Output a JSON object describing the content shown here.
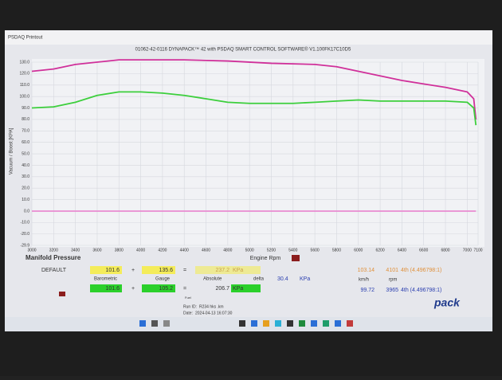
{
  "window_title": "PSDAQ Printout",
  "chart_data": {
    "type": "line",
    "title": "01062-42-0116 DYNAPACK™ 42 with PSDAQ SMART CONTROL SOFTWARE® V1.100FK17C10D5",
    "ylabel": "Vacuum / Boost [KPA]",
    "xlabel": "Engine Rpm",
    "xlim": [
      3000,
      7100
    ],
    "xticks": [
      3000,
      3200,
      3400,
      3600,
      3800,
      4000,
      4200,
      4400,
      4600,
      4800,
      5000,
      5200,
      5400,
      5600,
      5800,
      6000,
      6200,
      6400,
      6600,
      6800,
      7000,
      7100
    ],
    "ylim": [
      -29.9,
      130
    ],
    "yticks": [
      {
        "value": 130,
        "label": "130.0"
      },
      {
        "value": 120,
        "label": "120.0"
      },
      {
        "value": 110,
        "label": "110.0"
      },
      {
        "value": 100,
        "label": "100.0"
      },
      {
        "value": 90,
        "label": "90.0"
      },
      {
        "value": 80,
        "label": "80.0"
      },
      {
        "value": 70,
        "label": "70.0"
      },
      {
        "value": 60,
        "label": "60.0"
      },
      {
        "value": 50,
        "label": "50.0"
      },
      {
        "value": 40,
        "label": "40.0"
      },
      {
        "value": 30,
        "label": "30.0"
      },
      {
        "value": 20,
        "label": "20.0"
      },
      {
        "value": 10,
        "label": "10.0"
      },
      {
        "value": 0,
        "label": "0.0"
      },
      {
        "value": -10,
        "label": "-10.0"
      },
      {
        "value": -20,
        "label": "-20.0"
      },
      -29.9
    ],
    "grid": true,
    "series": [
      {
        "color": "#d0309a",
        "x": [
          3000,
          3200,
          3400,
          3600,
          3800,
          4000,
          4400,
          4800,
          5200,
          5600,
          5800,
          6000,
          6200,
          6400,
          6600,
          6800,
          7000,
          7060,
          7080
        ],
        "values": [
          122,
          124,
          128,
          130,
          132,
          132,
          132,
          131,
          129,
          128,
          126,
          122,
          118,
          114,
          111,
          108,
          104,
          98,
          80
        ]
      },
      {
        "color": "#3ccf3c",
        "x": [
          3000,
          3200,
          3400,
          3600,
          3800,
          4000,
          4200,
          4400,
          4600,
          4800,
          5000,
          5200,
          5400,
          5600,
          5800,
          6000,
          6200,
          6400,
          6600,
          6800,
          7000,
          7060,
          7080
        ],
        "values": [
          90,
          91,
          95,
          101,
          104,
          104,
          103,
          101,
          98,
          95,
          94,
          94,
          94,
          95,
          96,
          97,
          96,
          96,
          96,
          96,
          95,
          90,
          75
        ]
      },
      {
        "color": "#e88ad0",
        "x": [
          3000,
          7080
        ],
        "values": [
          0,
          0
        ]
      }
    ]
  },
  "panel": {
    "title": "Manifold Pressure",
    "row_label": "DEFAULT",
    "plus": "+",
    "equals": "=",
    "labels": {
      "baro": "Barometric",
      "gauge": "Gauge",
      "abs": "Absolute",
      "delta": "delta",
      "kmh": "km/h",
      "rpm": "rpm",
      "fuel": "Fuel"
    },
    "row1": {
      "baro": "101.6",
      "gauge": "135.6",
      "abs": "237.2",
      "unit": "KPa",
      "speed": "103.14",
      "rpm": "4101",
      "gear": "4th (4.496798:1)"
    },
    "delta": {
      "value": "30.4",
      "unit": "KPa"
    },
    "row2": {
      "baro": "101.6",
      "gauge": "105.2",
      "abs": "206.7",
      "unit": "KPa",
      "speed": "99.72",
      "rpm": "3965",
      "gear": "4th (4.496798:1)"
    },
    "run_id_label": "Run ID:",
    "run_id": "R234 hks .km",
    "date_label": "Date:",
    "date": "2024-04-13 16:07:30",
    "logo": "pack"
  }
}
